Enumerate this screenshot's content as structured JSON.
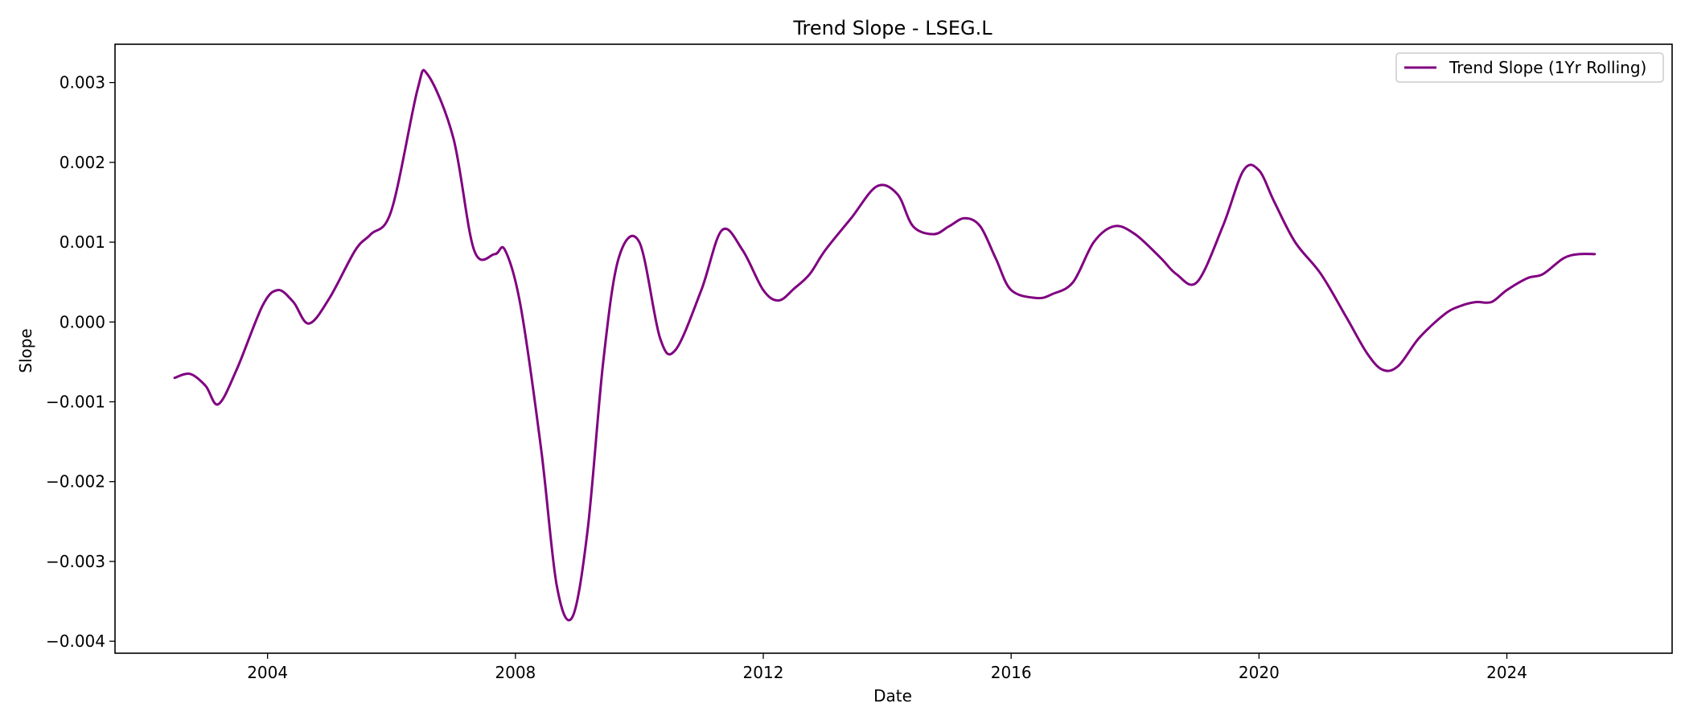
{
  "chart_data": {
    "type": "line",
    "title": "Trend Slope - LSEG.L",
    "xlabel": "Date",
    "ylabel": "Slope",
    "x_ticks": [
      "2004",
      "2008",
      "2012",
      "2016",
      "2020",
      "2024"
    ],
    "y_ticks": [
      "0.003",
      "0.002",
      "0.001",
      "0.000",
      "−0.001",
      "−0.002",
      "−0.003",
      "−0.004"
    ],
    "xlim": [
      "2001-07-15",
      "2026-09-01"
    ],
    "ylim": [
      -0.00415,
      0.00348
    ],
    "grid": false,
    "legend_position": "top-right",
    "series": [
      {
        "name": "Trend Slope (1Yr Rolling)",
        "color": "#800080",
        "x": [
          "2002-07-01",
          "2002-10-01",
          "2003-01-01",
          "2003-03-15",
          "2003-07-01",
          "2003-12-01",
          "2004-03-01",
          "2004-06-01",
          "2004-09-01",
          "2005-01-01",
          "2005-06-01",
          "2005-09-01",
          "2006-01-01",
          "2006-06-01",
          "2006-08-01",
          "2007-01-01",
          "2007-05-01",
          "2007-09-01",
          "2007-11-01",
          "2008-02-01",
          "2008-06-01",
          "2008-09-01",
          "2008-12-01",
          "2009-03-01",
          "2009-06-01",
          "2009-09-01",
          "2010-01-01",
          "2010-05-01",
          "2010-08-01",
          "2011-01-01",
          "2011-05-01",
          "2011-09-01",
          "2012-01-01",
          "2012-04-01",
          "2012-07-01",
          "2012-10-01",
          "2013-01-01",
          "2013-06-01",
          "2013-11-01",
          "2014-03-01",
          "2014-06-01",
          "2014-10-01",
          "2015-01-01",
          "2015-04-01",
          "2015-07-01",
          "2015-10-01",
          "2016-01-01",
          "2016-06-01",
          "2016-09-01",
          "2017-01-01",
          "2017-05-01",
          "2017-09-01",
          "2018-01-01",
          "2018-06-01",
          "2018-09-01",
          "2019-01-01",
          "2019-06-01",
          "2019-10-01",
          "2020-01-01",
          "2020-04-01",
          "2020-08-01",
          "2021-01-01",
          "2021-06-01",
          "2021-10-01",
          "2022-01-01",
          "2022-04-01",
          "2022-08-01",
          "2023-01-01",
          "2023-04-01",
          "2023-07-01",
          "2023-10-01",
          "2024-01-01",
          "2024-05-01",
          "2024-08-01",
          "2024-12-01",
          "2025-03-01",
          "2025-06-01"
        ],
        "y": [
          -0.0007,
          -0.00065,
          -0.0008,
          -0.00103,
          -0.0006,
          0.0002,
          0.0004,
          0.00025,
          -2e-05,
          0.0003,
          0.0009,
          0.0011,
          0.0014,
          0.0029,
          0.0031,
          0.0023,
          0.0009,
          0.00085,
          0.0009,
          0.0002,
          -0.0016,
          -0.0033,
          -0.0037,
          -0.0026,
          -0.0005,
          0.0008,
          0.001,
          -0.0002,
          -0.00035,
          0.0004,
          0.00115,
          0.0009,
          0.0004,
          0.00027,
          0.00042,
          0.0006,
          0.0009,
          0.0013,
          0.0017,
          0.0016,
          0.0012,
          0.0011,
          0.0012,
          0.0013,
          0.0012,
          0.0008,
          0.0004,
          0.0003,
          0.00035,
          0.0005,
          0.001,
          0.0012,
          0.0011,
          0.0008,
          0.0006,
          0.0005,
          0.0012,
          0.0019,
          0.0019,
          0.0015,
          0.001,
          0.0006,
          5e-05,
          -0.0004,
          -0.0006,
          -0.00055,
          -0.0002,
          0.0001,
          0.0002,
          0.00025,
          0.00025,
          0.0004,
          0.00055,
          0.0006,
          0.0008,
          0.00085,
          0.00085
        ]
      }
    ]
  }
}
